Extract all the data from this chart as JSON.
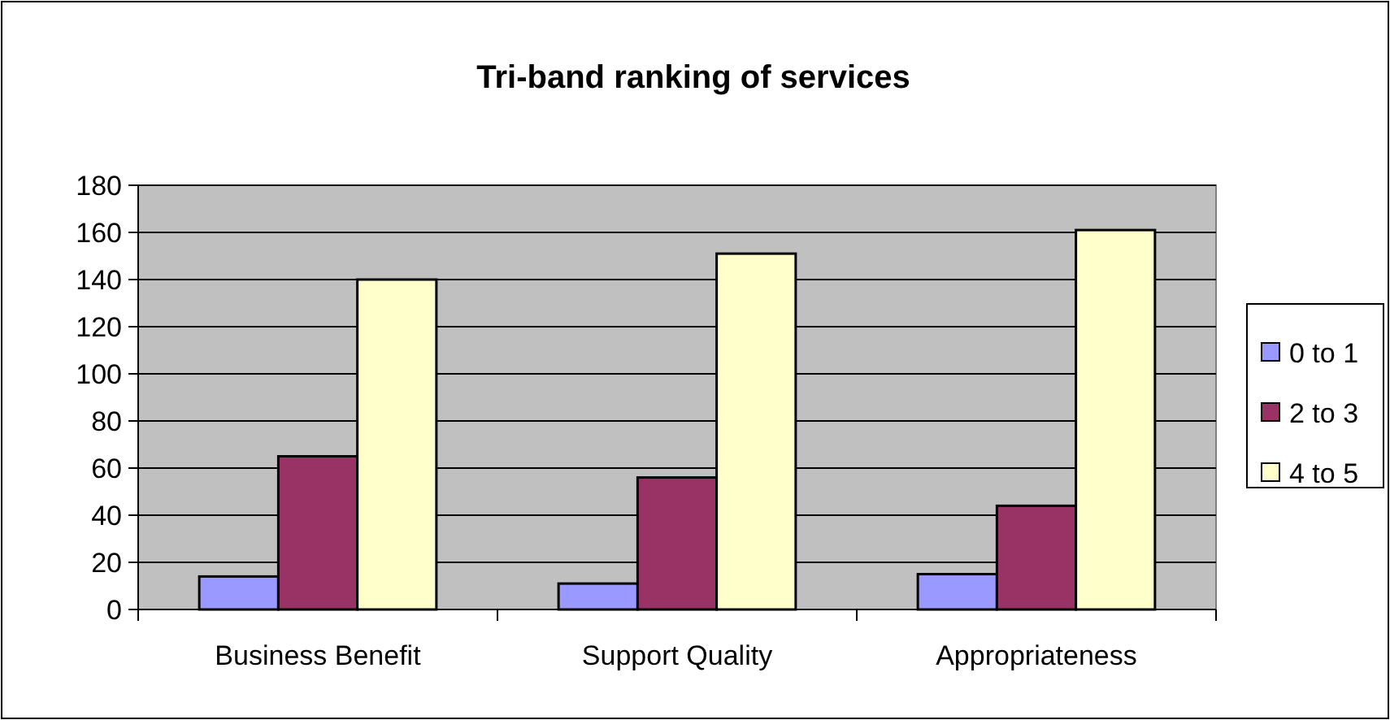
{
  "chart_data": {
    "type": "bar",
    "title": "Tri-band ranking of services",
    "categories": [
      "Business Benefit",
      "Support Quality",
      "Appropriateness"
    ],
    "series": [
      {
        "name": "0 to 1",
        "color": "#9999ff",
        "values": [
          14,
          11,
          15
        ]
      },
      {
        "name": "2 to 3",
        "color": "#993366",
        "values": [
          65,
          56,
          44
        ]
      },
      {
        "name": "4 to 5",
        "color": "#ffffcc",
        "values": [
          140,
          151,
          161
        ]
      }
    ],
    "ylim": [
      0,
      180
    ],
    "yticks": [
      0,
      20,
      40,
      60,
      80,
      100,
      120,
      140,
      160,
      180
    ],
    "grid": "y",
    "legend": "right"
  }
}
